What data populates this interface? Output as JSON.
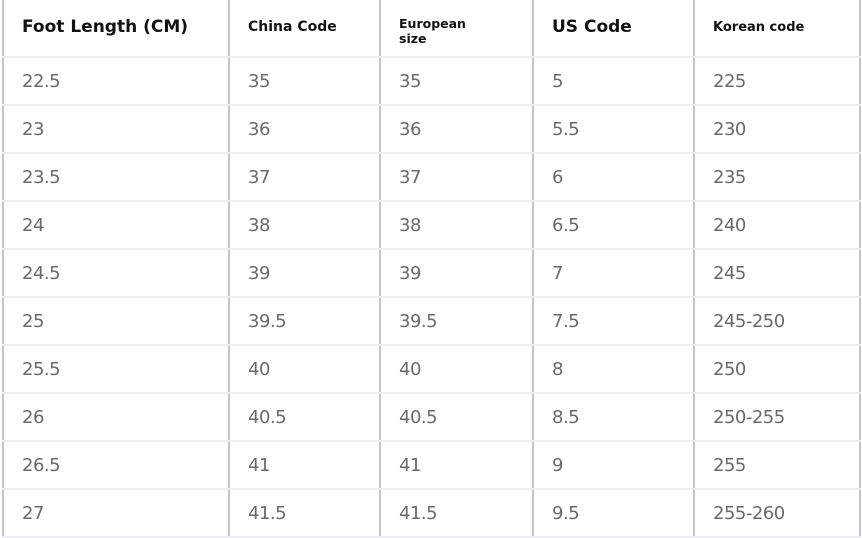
{
  "table": {
    "headers": [
      "Foot Length (CM)",
      "China Code",
      "European size",
      "US Code",
      "Korean code"
    ],
    "rows": [
      [
        "22.5",
        "35",
        "35",
        "5",
        "225"
      ],
      [
        "23",
        "36",
        "36",
        "5.5",
        "230"
      ],
      [
        "23.5",
        "37",
        "37",
        "6",
        "235"
      ],
      [
        "24",
        "38",
        "38",
        "6.5",
        "240"
      ],
      [
        "24.5",
        "39",
        "39",
        "7",
        "245"
      ],
      [
        "25",
        "39.5",
        "39.5",
        "7.5",
        "245-250"
      ],
      [
        "25.5",
        "40",
        "40",
        "8",
        "250"
      ],
      [
        "26",
        "40.5",
        "40.5",
        "8.5",
        "250-255"
      ],
      [
        "26.5",
        "41",
        "41",
        "9",
        "255"
      ],
      [
        "27",
        "41.5",
        "41.5",
        "9.5",
        "255-260"
      ]
    ]
  }
}
